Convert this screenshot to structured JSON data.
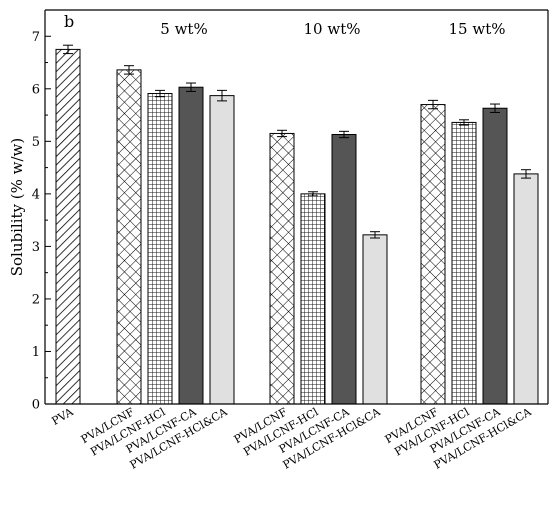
{
  "chart_data": {
    "type": "bar",
    "panel_label": "b",
    "ylabel": "Solubility (% w/w)",
    "ylim": [
      0,
      7.5
    ],
    "yticks": [
      0,
      1,
      2,
      3,
      4,
      5,
      6,
      7
    ],
    "grid": false,
    "legend": "none",
    "groups": [
      "",
      "5 wt%",
      "10 wt%",
      "15 wt%"
    ],
    "bars": [
      {
        "group": 0,
        "category": "PVA",
        "value": 6.75,
        "error": 0.08,
        "pattern": "diagonal-hatch"
      },
      {
        "group": 1,
        "category": "PVA/LCNF",
        "value": 6.36,
        "error": 0.08,
        "pattern": "cross-hatch"
      },
      {
        "group": 1,
        "category": "PVA/LCNF-HCl",
        "value": 5.91,
        "error": 0.06,
        "pattern": "grid"
      },
      {
        "group": 1,
        "category": "PVA/LCNF-CA",
        "value": 6.03,
        "error": 0.08,
        "pattern": "dark-gray"
      },
      {
        "group": 1,
        "category": "PVA/LCNF-HCl&CA",
        "value": 5.87,
        "error": 0.1,
        "pattern": "light-gray"
      },
      {
        "group": 2,
        "category": "PVA/LCNF",
        "value": 5.15,
        "error": 0.06,
        "pattern": "cross-hatch"
      },
      {
        "group": 2,
        "category": "PVA/LCNF-HCl",
        "value": 4.0,
        "error": 0.04,
        "pattern": "grid"
      },
      {
        "group": 2,
        "category": "PVA/LCNF-CA",
        "value": 5.13,
        "error": 0.06,
        "pattern": "dark-gray"
      },
      {
        "group": 2,
        "category": "PVA/LCNF-HCl&CA",
        "value": 3.22,
        "error": 0.06,
        "pattern": "light-gray"
      },
      {
        "group": 3,
        "category": "PVA/LCNF",
        "value": 5.7,
        "error": 0.08,
        "pattern": "cross-hatch"
      },
      {
        "group": 3,
        "category": "PVA/LCNF-HCl",
        "value": 5.36,
        "error": 0.05,
        "pattern": "grid"
      },
      {
        "group": 3,
        "category": "PVA/LCNF-CA",
        "value": 5.63,
        "error": 0.08,
        "pattern": "dark-gray"
      },
      {
        "group": 3,
        "category": "PVA/LCNF-HCl&CA",
        "value": 4.38,
        "error": 0.08,
        "pattern": "light-gray"
      }
    ],
    "colors": {
      "dark_gray": "#555555",
      "light_gray": "#e0e0e0",
      "stroke": "#000000"
    }
  }
}
